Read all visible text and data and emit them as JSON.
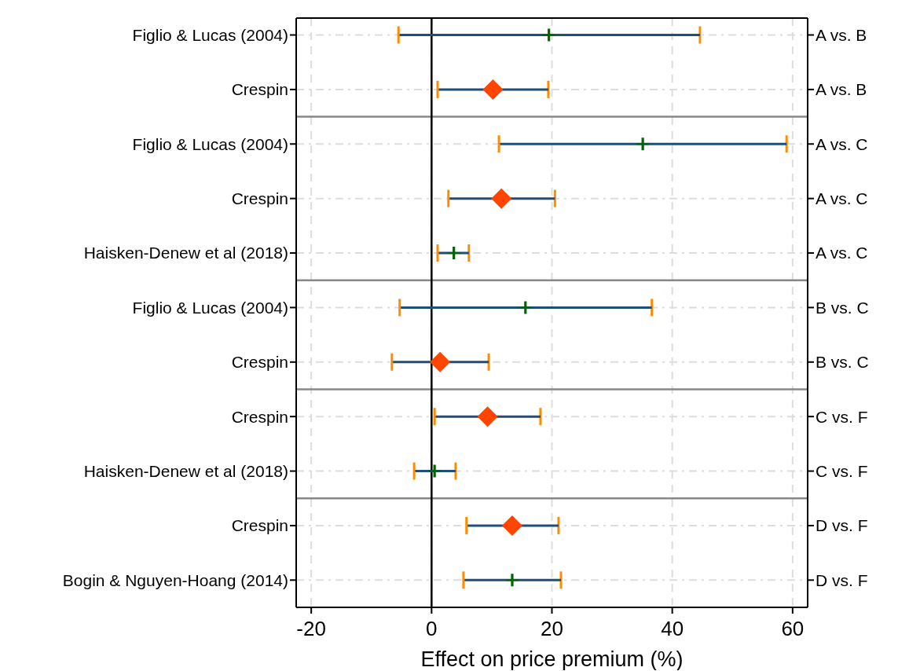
{
  "chart_data": {
    "type": "scatter",
    "orientation": "horizontal",
    "xlabel": "Effect on price premium (%)",
    "categories": [
      "Figlio & Lucas (2004)",
      "Crespin",
      "Figlio & Lucas (2004)",
      "Crespin",
      "Haisken-Denew et al (2018)",
      "Figlio & Lucas (2004)",
      "Crespin",
      "Crespin",
      "Haisken-Denew et al (2018)",
      "Crespin",
      "Bogin & Nguyen-Hoang (2014)"
    ],
    "y2_categories": [
      "A vs. B",
      "A vs. B",
      "A vs. C",
      "A vs. C",
      "A vs. C",
      "B vs. C",
      "B vs. C",
      "C vs. F",
      "C vs. F",
      "D vs. F",
      "D vs. F"
    ],
    "series": [
      {
        "color": "#ff4500",
        "marker": "diamond",
        "values": [
          null,
          10.2,
          null,
          11.6,
          null,
          null,
          1.4,
          9.3,
          null,
          13.4,
          null
        ],
        "errors": [
          null,
          [
            1.0,
            19.4
          ],
          null,
          [
            2.8,
            20.5
          ],
          null,
          null,
          [
            -6.6,
            9.5
          ],
          [
            0.5,
            18.1
          ],
          null,
          [
            5.8,
            21.1
          ],
          null
        ]
      },
      {
        "color": "#006400",
        "marker": "cross",
        "values": [
          19.5,
          null,
          35.1,
          null,
          3.7,
          15.6,
          null,
          null,
          0.5,
          null,
          13.4
        ],
        "errors": [
          [
            -5.5,
            44.6
          ],
          null,
          [
            11.2,
            59.0
          ],
          null,
          [
            1.0,
            6.2
          ],
          [
            -5.3,
            36.6
          ],
          null,
          null,
          [
            -2.9,
            4.0
          ],
          null,
          [
            5.3,
            21.5
          ]
        ]
      }
    ],
    "xlim": [
      -22.5,
      62.5
    ],
    "xticks": [
      -20,
      0,
      20,
      40,
      60
    ],
    "grid": true,
    "ref_lines": [
      {
        "axis": "x",
        "value": 0,
        "color": "#000000"
      }
    ]
  }
}
